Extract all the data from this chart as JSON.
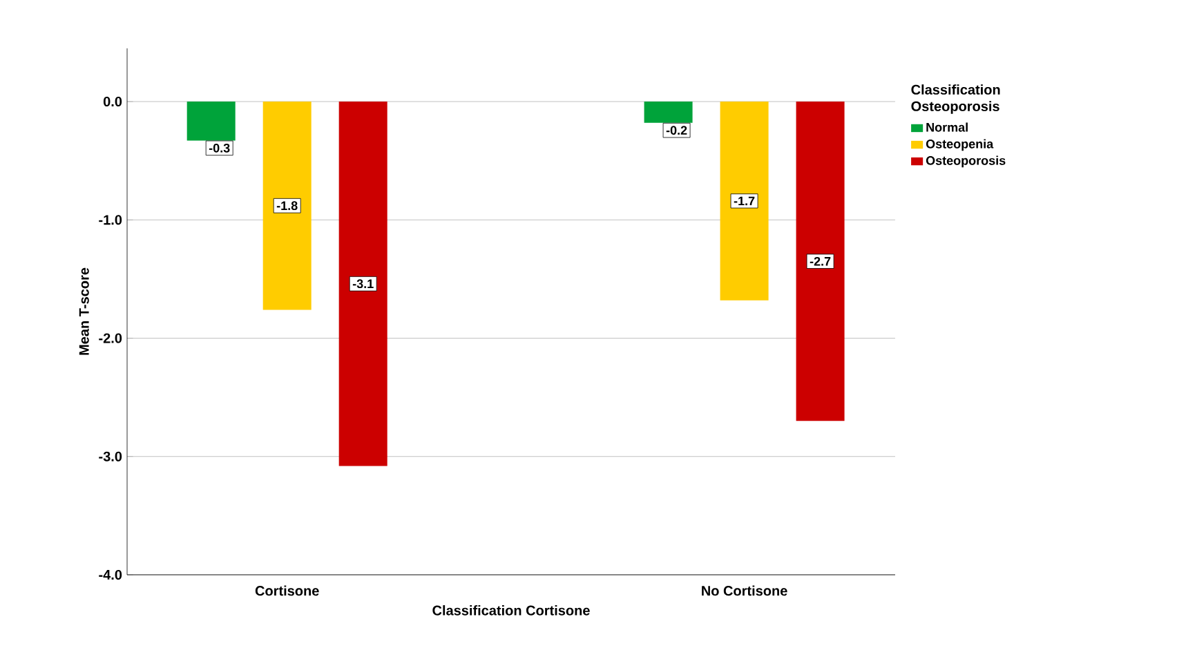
{
  "chart_data": {
    "type": "bar",
    "xlabel": "Classification Cortisone",
    "ylabel": "Mean T-score",
    "legend_title": "Classification Osteoporosis",
    "categories": [
      "Cortisone",
      "No Cortisone"
    ],
    "series": [
      {
        "name": "Normal",
        "color": "#00a33a",
        "values": [
          -0.33,
          -0.18
        ],
        "value_labels": [
          "-0.3",
          "-0.2"
        ]
      },
      {
        "name": "Osteopenia",
        "color": "#ffcc00",
        "values": [
          -1.76,
          -1.68
        ],
        "value_labels": [
          "-1.8",
          "-1.7"
        ]
      },
      {
        "name": "Osteoporosis",
        "color": "#cc0000",
        "values": [
          -3.08,
          -2.7
        ],
        "value_labels": [
          "-3.1",
          "-2.7"
        ]
      }
    ],
    "ylim": [
      -4,
      0.45
    ],
    "yticks": [
      {
        "value": -4,
        "label": "-4.0"
      },
      {
        "value": -3,
        "label": "-3.0"
      },
      {
        "value": -2,
        "label": "-2.0"
      },
      {
        "value": -1,
        "label": "-1.0"
      },
      {
        "value": 0,
        "label": "0.0"
      }
    ],
    "grid": "y",
    "legend": "top right"
  }
}
